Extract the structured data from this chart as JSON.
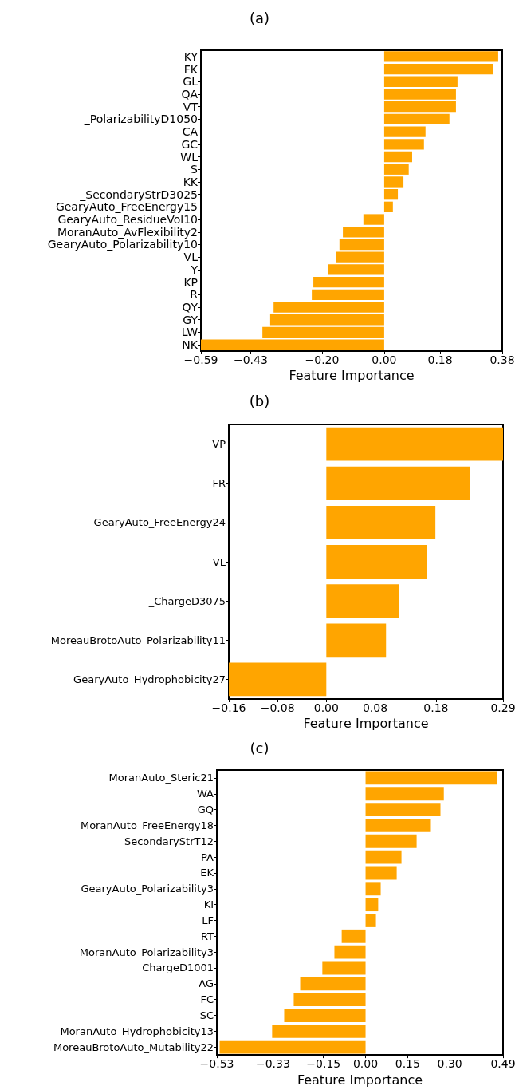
{
  "chart_data": [
    {
      "type": "bar",
      "orientation": "horizontal",
      "title": "(a)",
      "xlabel": "Feature Importance",
      "grid": false,
      "categories": [
        "KY",
        "FK",
        "GL",
        "QA",
        "VT",
        "_PolarizabilityD1050",
        "CA",
        "GC",
        "WL",
        "S",
        "KK",
        "_SecondaryStrD3025",
        "GearyAuto_FreeEnergy15",
        "GearyAuto_ResidueVol10",
        "MoranAuto_AvFlexibility2",
        "GearyAuto_Polarizability10",
        "VL",
        "Y",
        "KP",
        "R",
        "QY",
        "GY",
        "LW",
        "NK"
      ],
      "values": [
        0.367,
        0.351,
        0.236,
        0.231,
        0.231,
        0.21,
        0.133,
        0.128,
        0.09,
        0.079,
        0.062,
        0.044,
        0.028,
        -0.067,
        -0.133,
        -0.144,
        -0.154,
        -0.182,
        -0.228,
        -0.233,
        -0.356,
        -0.367,
        -0.392,
        -0.59
      ],
      "color": "#ffa500",
      "xlim": [
        -0.59,
        0.38
      ],
      "xticks": [
        {
          "value": -0.59,
          "label": "−0.59"
        },
        {
          "value": -0.43,
          "label": "−0.43"
        },
        {
          "value": -0.2,
          "label": "−0.20"
        },
        {
          "value": 0,
          "label": "0.00"
        },
        {
          "value": 0.18,
          "label": "0.18"
        },
        {
          "value": 0.38,
          "label": "0.38"
        }
      ]
    },
    {
      "type": "bar",
      "orientation": "horizontal",
      "title": "(b)",
      "xlabel": "Feature Importance",
      "grid": false,
      "categories": [
        "VP",
        "FR",
        "GearyAuto_FreeEnergy24",
        "VL",
        "_ChargeD3075",
        "MoreauBrotoAuto_Polarizability11",
        "GearyAuto_Hydrophobicity27"
      ],
      "values": [
        0.29,
        0.236,
        0.179,
        0.165,
        0.119,
        0.098,
        -0.16
      ],
      "color": "#ffa500",
      "xlim": [
        -0.16,
        0.29
      ],
      "xticks": [
        {
          "value": -0.16,
          "label": "−0.16"
        },
        {
          "value": -0.08,
          "label": "−0.08"
        },
        {
          "value": 0,
          "label": "0.00"
        },
        {
          "value": 0.08,
          "label": "0.08"
        },
        {
          "value": 0.18,
          "label": "0.18"
        },
        {
          "value": 0.29,
          "label": "0.29"
        }
      ]
    },
    {
      "type": "bar",
      "orientation": "horizontal",
      "title": "(c)",
      "xlabel": "Feature Importance",
      "grid": false,
      "categories": [
        "MoranAuto_Steric21",
        "WA",
        "GQ",
        "MoranAuto_FreeEnergy18",
        "_SecondaryStrT12",
        "PA",
        "EK",
        "GearyAuto_Polarizability3",
        "KI",
        "LF",
        "RT",
        "MoranAuto_Polarizability3",
        "_ChargeD1001",
        "AG",
        "FC",
        "SC",
        "MoranAuto_Hydrophobicity13",
        "MoreauBrotoAuto_Mutability22"
      ],
      "values": [
        0.469,
        0.279,
        0.267,
        0.23,
        0.182,
        0.128,
        0.111,
        0.054,
        0.045,
        0.037,
        -0.085,
        -0.111,
        -0.154,
        -0.233,
        -0.256,
        -0.29,
        -0.333,
        -0.52
      ],
      "color": "#ffa500",
      "xlim": [
        -0.53,
        0.49
      ],
      "xticks": [
        {
          "value": -0.53,
          "label": "−0.53"
        },
        {
          "value": -0.33,
          "label": "−0.33"
        },
        {
          "value": -0.15,
          "label": "−0.15"
        },
        {
          "value": 0,
          "label": "0.00"
        },
        {
          "value": 0.15,
          "label": "0.15"
        },
        {
          "value": 0.3,
          "label": "0.30"
        },
        {
          "value": 0.49,
          "label": "0.49"
        }
      ]
    }
  ]
}
